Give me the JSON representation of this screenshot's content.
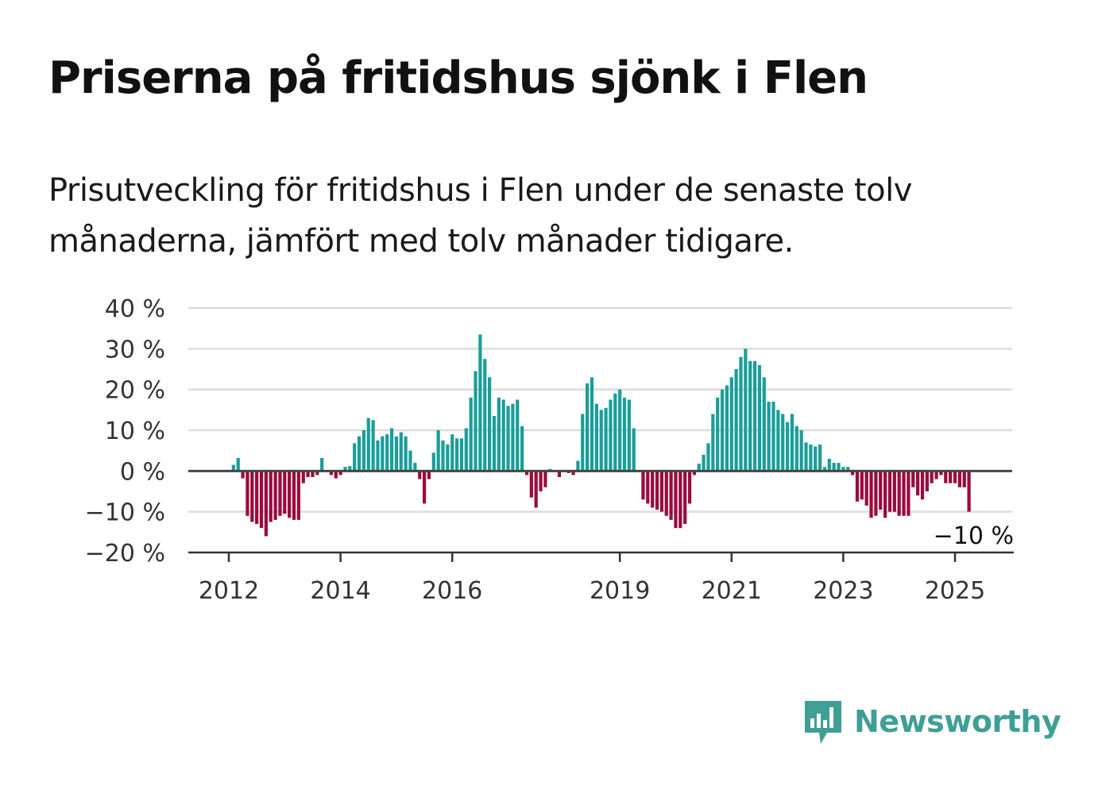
{
  "title": "Priserna på fritidshus sjönk i Flen",
  "subtitle": "Prisutveckling för fritidshus i Flen under de senaste tolv månaderna, jämfört med tolv månader tidigare.",
  "brand": {
    "name": "Newsworthy",
    "icon": "newsworthy-bar-chart-icon",
    "color": "#3f9f96"
  },
  "chart_data": {
    "type": "bar",
    "y_tick_labels": [
      "40 %",
      "30 %",
      "20 %",
      "10 %",
      "0 %",
      "−10 %",
      "−20 %"
    ],
    "y_ticks": [
      40,
      30,
      20,
      10,
      0,
      -10,
      -20
    ],
    "ylim": [
      -20,
      40
    ],
    "x_tick_labels": [
      "2012",
      "2014",
      "2016",
      "2019",
      "2021",
      "2023",
      "2025"
    ],
    "x_tick_months": [
      "2012-01",
      "2014-01",
      "2016-01",
      "2019-01",
      "2021-01",
      "2023-01",
      "2025-01"
    ],
    "first_month": "2012-01",
    "x_end_month": "2025-12",
    "grid": true,
    "colors": {
      "positive": "#1a9e99",
      "negative": "#9b0a3d"
    },
    "last_value_label": "−10 %",
    "values": [
      0,
      1.5,
      3.2,
      -1.8,
      -11,
      -12.5,
      -13,
      -14,
      -16,
      -12.5,
      -12,
      -11,
      -10.5,
      -11.5,
      -12,
      -12,
      -3,
      -1.5,
      -1.5,
      -1,
      3.2,
      0,
      -1,
      -1.8,
      -1,
      1,
      1.2,
      6.8,
      8.5,
      10,
      13,
      12.5,
      7.5,
      8.5,
      9,
      10.5,
      8.5,
      9.5,
      8.5,
      5,
      2,
      -2,
      -8,
      -2,
      4.5,
      10,
      7.5,
      6.5,
      9,
      8,
      8,
      10.5,
      18,
      24.5,
      33.5,
      27.5,
      23,
      13.5,
      18,
      17.5,
      16,
      16.5,
      17.5,
      11,
      -1,
      -6.5,
      -9,
      -5,
      -4,
      0.5,
      0,
      -1.5,
      0,
      -0.5,
      -1,
      2.5,
      14,
      21.5,
      23,
      16.5,
      15,
      15.5,
      17.5,
      19,
      20,
      18,
      17.5,
      10.5,
      0,
      -7,
      -8,
      -9,
      -9.5,
      -10,
      -11,
      -12,
      -14,
      -14,
      -13,
      -8,
      -1,
      1.8,
      4,
      6.8,
      14,
      18,
      20,
      21,
      23,
      25,
      28,
      30,
      27,
      27,
      26,
      23,
      17,
      17,
      15,
      14,
      12,
      14,
      11,
      10,
      7,
      6.5,
      6,
      6.5,
      1,
      3,
      2,
      2,
      1,
      1,
      -1,
      -7.5,
      -7,
      -8.5,
      -11.5,
      -11,
      -9.5,
      -11.5,
      -10,
      -10,
      -11,
      -11,
      -11,
      -4,
      -6,
      -7,
      -5,
      -3,
      -2,
      -1,
      -3,
      -3,
      -3,
      -4,
      -4,
      -10
    ]
  }
}
